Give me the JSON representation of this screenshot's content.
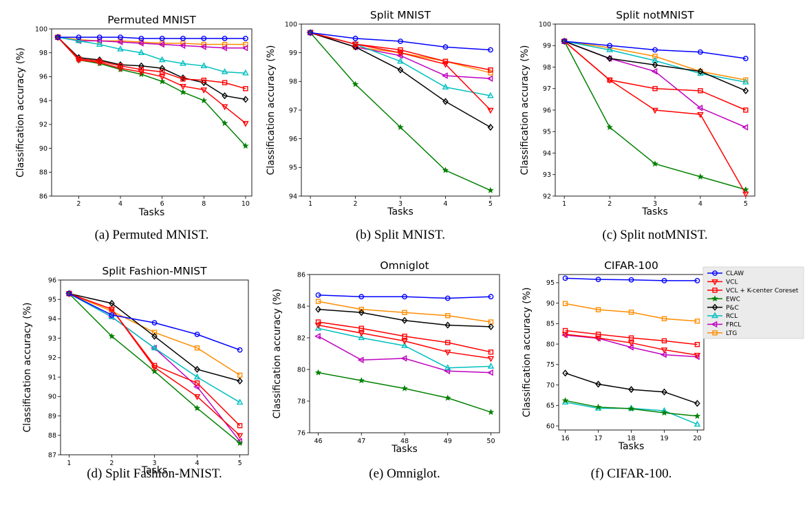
{
  "series_style": [
    {
      "name": "CLAW",
      "color": "#0000ff",
      "marker": "circle"
    },
    {
      "name": "VCL",
      "color": "#ff0000",
      "marker": "triangle-down"
    },
    {
      "name": "VCL + K-center Coreset",
      "color": "#ff0000",
      "marker": "square"
    },
    {
      "name": "EWC",
      "color": "#008000",
      "marker": "star"
    },
    {
      "name": "P&C",
      "color": "#000000",
      "marker": "diamond"
    },
    {
      "name": "RCL",
      "color": "#00bfbf",
      "marker": "triangle-up"
    },
    {
      "name": "FRCL",
      "color": "#bf00bf",
      "marker": "left-caret"
    },
    {
      "name": "LTG",
      "color": "#ff8c00",
      "marker": "square"
    }
  ],
  "legend": {
    "placement": "right of panel f"
  },
  "chart_data": [
    {
      "type": "line",
      "title": "Permuted MNIST",
      "xlabel": "Tasks",
      "ylabel": "Classification accuracy (%)",
      "caption": "(a) Permuted MNIST.",
      "xlim": [
        0.7,
        10.3
      ],
      "ylim": [
        86,
        100
      ],
      "xticks": [
        2,
        4,
        6,
        8,
        10
      ],
      "yticks": [
        86,
        88,
        90,
        92,
        94,
        96,
        98,
        100
      ],
      "x": [
        1,
        2,
        3,
        4,
        5,
        6,
        7,
        8,
        9,
        10
      ],
      "series": [
        {
          "name": "CLAW",
          "values": [
            99.3,
            99.3,
            99.3,
            99.3,
            99.2,
            99.2,
            99.2,
            99.2,
            99.2,
            99.2
          ]
        },
        {
          "name": "LTG",
          "values": [
            99.3,
            99.1,
            99.0,
            99.0,
            98.9,
            98.8,
            98.8,
            98.7,
            98.7,
            98.7
          ]
        },
        {
          "name": "FRCL",
          "values": [
            99.3,
            99.0,
            99.0,
            98.9,
            98.8,
            98.7,
            98.6,
            98.5,
            98.4,
            98.4
          ]
        },
        {
          "name": "RCL",
          "values": [
            99.3,
            99.0,
            98.7,
            98.3,
            98.0,
            97.4,
            97.1,
            96.9,
            96.4,
            96.3
          ]
        },
        {
          "name": "VCL + K-center Coreset",
          "values": [
            99.3,
            97.5,
            97.3,
            96.9,
            96.6,
            96.4,
            95.8,
            95.7,
            95.5,
            95.0
          ]
        },
        {
          "name": "P&C",
          "values": [
            99.3,
            97.6,
            97.4,
            97.0,
            96.9,
            96.7,
            95.9,
            95.5,
            94.4,
            94.1
          ]
        },
        {
          "name": "VCL",
          "values": [
            99.3,
            97.4,
            97.2,
            96.7,
            96.4,
            96.0,
            95.2,
            94.9,
            93.5,
            92.1
          ]
        },
        {
          "name": "EWC",
          "values": [
            99.3,
            97.4,
            97.1,
            96.6,
            96.2,
            95.6,
            94.7,
            94.0,
            92.1,
            90.2
          ]
        }
      ]
    },
    {
      "type": "line",
      "title": "Split MNIST",
      "xlabel": "Tasks",
      "ylabel": "Classification accuracy (%)",
      "caption": "(b) Split MNIST.",
      "xlim": [
        0.8,
        5.2
      ],
      "ylim": [
        94,
        100
      ],
      "xticks": [
        1,
        2,
        3,
        4,
        5
      ],
      "yticks": [
        94,
        95,
        96,
        97,
        98,
        99,
        100
      ],
      "x": [
        1,
        2,
        3,
        4,
        5
      ],
      "series": [
        {
          "name": "CLAW",
          "values": [
            99.7,
            99.5,
            99.4,
            99.2,
            99.1
          ]
        },
        {
          "name": "VCL + K-center Coreset",
          "values": [
            99.7,
            99.3,
            99.1,
            98.7,
            98.4
          ]
        },
        {
          "name": "LTG",
          "values": [
            99.7,
            99.2,
            99.0,
            98.7,
            98.3
          ]
        },
        {
          "name": "VCL",
          "values": [
            99.7,
            99.3,
            99.0,
            98.6,
            97.0
          ]
        },
        {
          "name": "FRCL",
          "values": [
            99.7,
            99.2,
            98.9,
            98.2,
            98.1
          ]
        },
        {
          "name": "RCL",
          "values": [
            99.7,
            99.3,
            98.7,
            97.8,
            97.5
          ]
        },
        {
          "name": "P&C",
          "values": [
            99.7,
            99.2,
            98.4,
            97.3,
            96.4
          ]
        },
        {
          "name": "EWC",
          "values": [
            99.7,
            97.9,
            96.4,
            94.9,
            94.2
          ]
        }
      ]
    },
    {
      "type": "line",
      "title": "Split notMNIST",
      "xlabel": "Tasks",
      "ylabel": "Classification accuracy (%)",
      "caption": "(c) Split notMNIST.",
      "xlim": [
        0.8,
        5.2
      ],
      "ylim": [
        92,
        100
      ],
      "xticks": [
        1,
        2,
        3,
        4,
        5
      ],
      "yticks": [
        92,
        93,
        94,
        95,
        96,
        97,
        98,
        99,
        100
      ],
      "x": [
        1,
        2,
        3,
        4,
        5
      ],
      "series": [
        {
          "name": "CLAW",
          "values": [
            99.2,
            99.0,
            98.8,
            98.7,
            98.4
          ]
        },
        {
          "name": "LTG",
          "values": [
            99.2,
            98.9,
            98.5,
            97.8,
            97.4
          ]
        },
        {
          "name": "RCL",
          "values": [
            99.2,
            98.8,
            98.3,
            97.7,
            97.3
          ]
        },
        {
          "name": "P&C",
          "values": [
            99.2,
            98.4,
            98.1,
            97.8,
            96.9
          ]
        },
        {
          "name": "FRCL",
          "values": [
            99.2,
            98.4,
            97.8,
            96.1,
            95.2
          ]
        },
        {
          "name": "VCL + K-center Coreset",
          "values": [
            99.2,
            97.4,
            97.0,
            96.9,
            96.0
          ]
        },
        {
          "name": "VCL",
          "values": [
            99.2,
            97.4,
            96.0,
            95.8,
            92.1
          ]
        },
        {
          "name": "EWC",
          "values": [
            99.2,
            95.2,
            93.5,
            92.9,
            92.3
          ]
        }
      ]
    },
    {
      "type": "line",
      "title": "Split Fashion-MNIST",
      "xlabel": "Tasks",
      "ylabel": "Classification accuracy (%)",
      "caption": "(d) Split Fashion-MNIST.",
      "xlim": [
        0.8,
        5.2
      ],
      "ylim": [
        87,
        96
      ],
      "xticks": [
        1,
        2,
        3,
        4,
        5
      ],
      "yticks": [
        87,
        88,
        89,
        90,
        91,
        92,
        93,
        94,
        95,
        96
      ],
      "x": [
        1,
        2,
        3,
        4,
        5
      ],
      "series": [
        {
          "name": "CLAW",
          "values": [
            95.3,
            94.2,
            93.8,
            93.2,
            92.4
          ]
        },
        {
          "name": "LTG",
          "values": [
            95.3,
            94.4,
            93.3,
            92.5,
            91.1
          ]
        },
        {
          "name": "P&C",
          "values": [
            95.3,
            94.8,
            93.1,
            91.4,
            90.8
          ]
        },
        {
          "name": "RCL",
          "values": [
            95.3,
            94.1,
            92.5,
            91.0,
            89.7
          ]
        },
        {
          "name": "FRCL",
          "values": [
            95.3,
            94.1,
            92.5,
            90.5,
            87.7
          ]
        },
        {
          "name": "VCL + K-center Coreset",
          "values": [
            95.3,
            94.5,
            91.6,
            90.7,
            88.5
          ]
        },
        {
          "name": "VCL",
          "values": [
            95.3,
            94.5,
            91.5,
            90.0,
            88.0
          ]
        },
        {
          "name": "EWC",
          "values": [
            95.3,
            93.1,
            91.3,
            89.4,
            87.6
          ]
        }
      ]
    },
    {
      "type": "line",
      "title": "Omniglot",
      "xlabel": "Tasks",
      "ylabel": "Classification accuracy (%)",
      "caption": "(e) Omniglot.",
      "xlim": [
        45.8,
        50.2
      ],
      "ylim": [
        76,
        86
      ],
      "xticks": [
        46,
        47,
        48,
        49,
        50
      ],
      "yticks": [
        76,
        78,
        80,
        82,
        84,
        86
      ],
      "x": [
        46,
        47,
        48,
        49,
        50
      ],
      "series": [
        {
          "name": "CLAW",
          "values": [
            84.7,
            84.6,
            84.6,
            84.5,
            84.6
          ]
        },
        {
          "name": "LTG",
          "values": [
            84.3,
            83.8,
            83.6,
            83.4,
            83.0
          ]
        },
        {
          "name": "P&C",
          "values": [
            83.8,
            83.6,
            83.1,
            82.8,
            82.7
          ]
        },
        {
          "name": "VCL + K-center Coreset",
          "values": [
            83.0,
            82.6,
            82.1,
            81.7,
            81.1
          ]
        },
        {
          "name": "VCL",
          "values": [
            82.8,
            82.3,
            81.8,
            81.1,
            80.7
          ]
        },
        {
          "name": "RCL",
          "values": [
            82.6,
            82.0,
            81.5,
            80.1,
            80.2
          ]
        },
        {
          "name": "FRCL",
          "values": [
            82.1,
            80.6,
            80.7,
            79.9,
            79.8
          ]
        },
        {
          "name": "EWC",
          "values": [
            79.8,
            79.3,
            78.8,
            78.2,
            77.3
          ]
        }
      ]
    },
    {
      "type": "line",
      "title": "CIFAR-100",
      "xlabel": "Tasks",
      "ylabel": "Classification accuracy (%)",
      "caption": "(f) CIFAR-100.",
      "xlim": [
        15.8,
        20.2
      ],
      "ylim": [
        59,
        97
      ],
      "xticks": [
        16,
        17,
        18,
        19,
        20
      ],
      "yticks": [
        60,
        65,
        70,
        75,
        80,
        85,
        90,
        95
      ],
      "x": [
        16,
        17,
        18,
        19,
        20
      ],
      "series": [
        {
          "name": "CLAW",
          "values": [
            96.1,
            95.8,
            95.7,
            95.5,
            95.5
          ]
        },
        {
          "name": "LTG",
          "values": [
            89.9,
            88.4,
            87.8,
            86.2,
            85.6
          ]
        },
        {
          "name": "VCL + K-center Coreset",
          "values": [
            83.3,
            82.4,
            81.5,
            80.8,
            79.9
          ]
        },
        {
          "name": "VCL",
          "values": [
            82.4,
            81.5,
            80.3,
            78.6,
            77.3
          ]
        },
        {
          "name": "FRCL",
          "values": [
            82.2,
            81.4,
            79.2,
            77.4,
            76.9
          ]
        },
        {
          "name": "P&C",
          "values": [
            72.9,
            70.2,
            68.9,
            68.3,
            65.5
          ]
        },
        {
          "name": "EWC",
          "values": [
            66.2,
            64.6,
            64.2,
            63.2,
            62.4
          ]
        },
        {
          "name": "RCL",
          "values": [
            65.8,
            64.3,
            64.3,
            63.7,
            60.4
          ]
        }
      ]
    }
  ]
}
